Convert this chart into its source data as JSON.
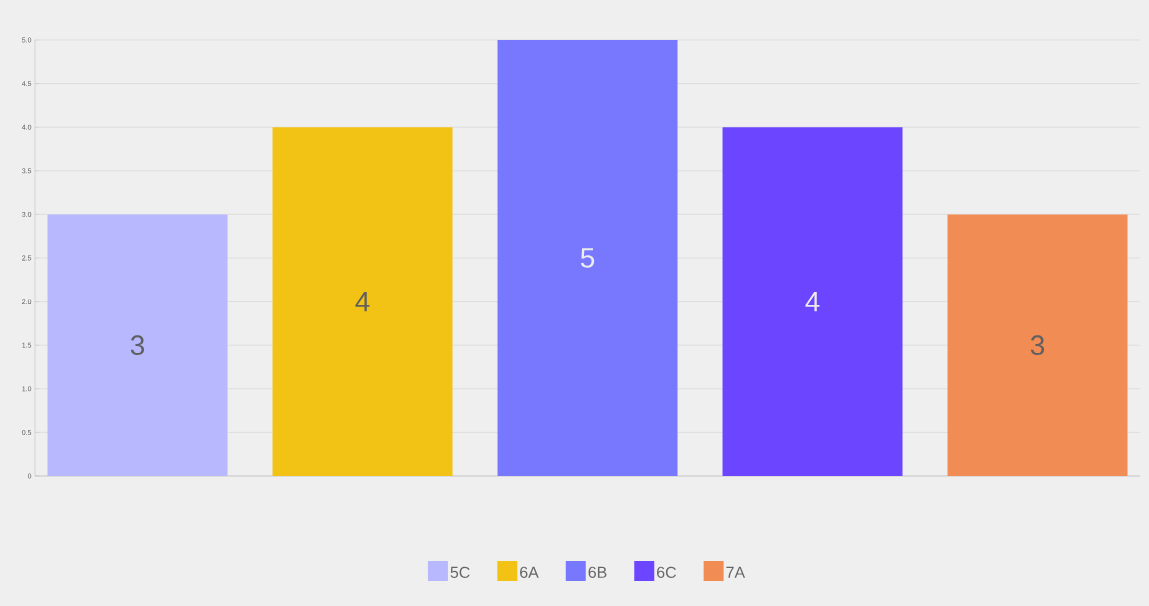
{
  "chart_data": {
    "type": "bar",
    "categories": [
      null
    ],
    "series": [
      {
        "name": "5C",
        "color": "#b8b8ff",
        "values": [
          3
        ]
      },
      {
        "name": "6A",
        "color": "#f2c314",
        "values": [
          4
        ]
      },
      {
        "name": "6B",
        "color": "#7878ff",
        "values": [
          5
        ]
      },
      {
        "name": "6C",
        "color": "#6b45ff",
        "values": [
          4
        ]
      },
      {
        "name": "7A",
        "color": "#f28c55",
        "values": [
          3
        ]
      }
    ],
    "ylim": [
      0,
      5
    ],
    "yticks": [
      0,
      {
        "value": 0.5,
        "label": "0.5"
      },
      {
        "value": 1,
        "label": "1.0"
      },
      {
        "value": 1.5,
        "label": "1.5"
      },
      {
        "value": 2,
        "label": "2.0"
      },
      {
        "value": 2.5,
        "label": "2.5"
      },
      {
        "value": 3,
        "label": "3.0"
      },
      {
        "value": 3.5,
        "label": "3.5"
      },
      {
        "value": 4,
        "label": "4.0"
      },
      {
        "value": 4.5,
        "label": "4.5"
      },
      {
        "value": 5,
        "label": "5.0"
      }
    ],
    "grid": "y",
    "legend": "bottom",
    "data_labels": true
  }
}
